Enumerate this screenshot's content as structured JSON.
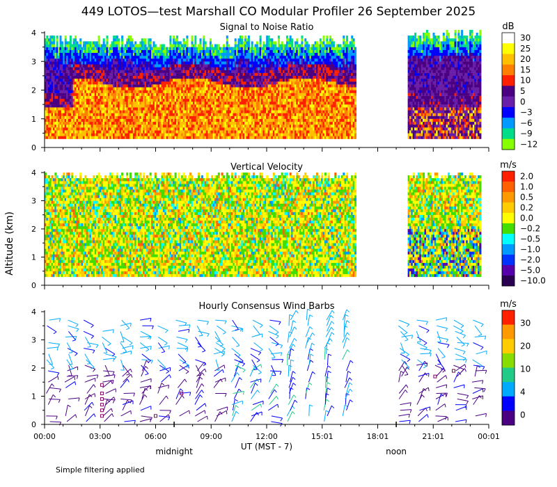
{
  "title": "449 LOTOS—test Marshall CO Modular Profiler 26 September 2025",
  "footnote": "Simple filtering applied",
  "y_axis_label": "Altitude (km)",
  "x_axis": {
    "label": "UT  (MST - 7)",
    "ticks": [
      "00:00",
      "03:00",
      "06:00",
      "09:00",
      "12:00",
      "15:01",
      "18:01",
      "21:01",
      "00:01"
    ],
    "tick_hours": [
      0,
      3,
      6,
      9,
      12,
      15,
      18,
      21,
      24
    ],
    "markers": [
      {
        "label": "midnight",
        "hour": 7
      },
      {
        "label": "noon",
        "hour": 19
      }
    ]
  },
  "chart_data": [
    {
      "type": "heatmap",
      "title": "Signal to Noise Ratio",
      "unit": "dB",
      "xlabel": "UT  (MST - 7)",
      "ylabel": "Altitude (km)",
      "xlim": [
        0,
        24
      ],
      "ylim": [
        0,
        4
      ],
      "yticks": [
        0,
        1,
        2,
        3,
        4
      ],
      "data_gaps_hours": [
        [
          16.8,
          19.6
        ]
      ],
      "data_end_hour": 23.5,
      "colorbar": {
        "levels": [
          "30",
          "25",
          "20",
          "15",
          "10",
          "5",
          "0",
          "−3",
          "−6",
          "−9",
          "−12"
        ],
        "colors": [
          "#ffffff",
          "#ffff00",
          "#ffc000",
          "#ff8000",
          "#ff2000",
          "#4b0082",
          "#6a1fa8",
          "#0000ff",
          "#0099ff",
          "#00dd88",
          "#88ff00"
        ]
      }
    },
    {
      "type": "heatmap",
      "title": "Vertical Velocity",
      "unit": "m/s",
      "xlabel": "UT  (MST - 7)",
      "ylabel": "Altitude (km)",
      "xlim": [
        0,
        24
      ],
      "ylim": [
        0,
        4
      ],
      "yticks": [
        0,
        1,
        2,
        3,
        4
      ],
      "data_gaps_hours": [
        [
          16.8,
          19.6
        ]
      ],
      "data_end_hour": 23.5,
      "colorbar": {
        "levels": [
          "2.0",
          "1.0",
          "0.5",
          "0.2",
          "0.0",
          "−0.2",
          "−0.5",
          "−1.0",
          "−2.0",
          "−5.0",
          "−10.0"
        ],
        "colors": [
          "#ff2000",
          "#ff6000",
          "#ff9900",
          "#ffcc00",
          "#ffff00",
          "#44dd00",
          "#00ffff",
          "#0099ff",
          "#0033ff",
          "#5500aa",
          "#2a0050"
        ]
      }
    },
    {
      "type": "scatter",
      "title": "Hourly Consensus Wind Barbs",
      "unit": "m/s",
      "xlabel": "UT  (MST - 7)",
      "ylabel": "Altitude (km)",
      "xlim": [
        0,
        24
      ],
      "ylim": [
        0,
        4
      ],
      "yticks": [
        0,
        1,
        2,
        3,
        4
      ],
      "data_gaps_hours": [
        [
          17.0,
          18.8
        ]
      ],
      "colorbar": {
        "levels": [
          "30",
          "20",
          "10",
          "4",
          "0"
        ],
        "colors": [
          "#ff2000",
          "#ff9900",
          "#ffcc00",
          "#88dd00",
          "#22cc88",
          "#00aaff",
          "#0000ff",
          "#4b0082"
        ]
      }
    }
  ]
}
